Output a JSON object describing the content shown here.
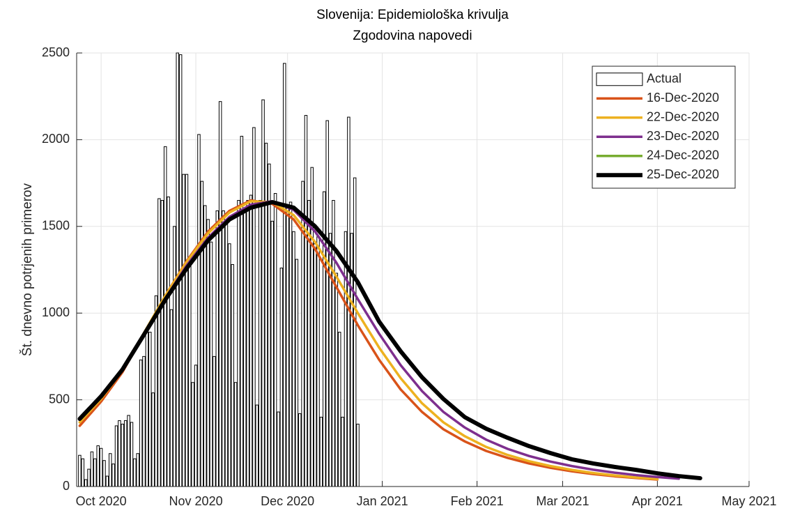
{
  "chart_data": {
    "type": "combo",
    "title": "Slovenija: Epidemiološka krivulja",
    "subtitle": "Zgodovina napovedi",
    "ylabel": "Št. dnevno potrjenih primerov",
    "xlim": [
      "2020-09-23",
      "2021-05-01"
    ],
    "xticks": [
      {
        "value": "2020-10-01",
        "label": "Oct 2020"
      },
      {
        "value": "2020-11-01",
        "label": "Nov 2020"
      },
      {
        "value": "2020-12-01",
        "label": "Dec 2020"
      },
      {
        "value": "2021-01-01",
        "label": "Jan 2021"
      },
      {
        "value": "2021-02-01",
        "label": "Feb 2021"
      },
      {
        "value": "2021-03-01",
        "label": "Mar 2021"
      },
      {
        "value": "2021-04-01",
        "label": "Apr 2021"
      },
      {
        "value": "2021-05-01",
        "label": "May 2021"
      }
    ],
    "ylim": [
      0,
      2500
    ],
    "yticks": [
      0,
      500,
      1000,
      1500,
      2000,
      2500
    ],
    "grid": true,
    "legend": "upper right",
    "bars": {
      "name": "Actual",
      "color": "#ffffff",
      "edgecolor": "#000000",
      "x": [
        "2020-09-24",
        "2020-09-25",
        "2020-09-26",
        "2020-09-27",
        "2020-09-28",
        "2020-09-29",
        "2020-09-30",
        "2020-10-01",
        "2020-10-02",
        "2020-10-03",
        "2020-10-04",
        "2020-10-05",
        "2020-10-06",
        "2020-10-07",
        "2020-10-08",
        "2020-10-09",
        "2020-10-10",
        "2020-10-11",
        "2020-10-12",
        "2020-10-13",
        "2020-10-14",
        "2020-10-15",
        "2020-10-16",
        "2020-10-17",
        "2020-10-18",
        "2020-10-19",
        "2020-10-20",
        "2020-10-21",
        "2020-10-22",
        "2020-10-23",
        "2020-10-24",
        "2020-10-25",
        "2020-10-26",
        "2020-10-27",
        "2020-10-28",
        "2020-10-29",
        "2020-10-30",
        "2020-10-31",
        "2020-11-01",
        "2020-11-02",
        "2020-11-03",
        "2020-11-04",
        "2020-11-05",
        "2020-11-06",
        "2020-11-07",
        "2020-11-08",
        "2020-11-09",
        "2020-11-10",
        "2020-11-11",
        "2020-11-12",
        "2020-11-13",
        "2020-11-14",
        "2020-11-15",
        "2020-11-16",
        "2020-11-17",
        "2020-11-18",
        "2020-11-19",
        "2020-11-20",
        "2020-11-21",
        "2020-11-22",
        "2020-11-23",
        "2020-11-24",
        "2020-11-25",
        "2020-11-26",
        "2020-11-27",
        "2020-11-28",
        "2020-11-29",
        "2020-11-30",
        "2020-12-01",
        "2020-12-02",
        "2020-12-03",
        "2020-12-04",
        "2020-12-05",
        "2020-12-06",
        "2020-12-07",
        "2020-12-08",
        "2020-12-09",
        "2020-12-10",
        "2020-12-11",
        "2020-12-12",
        "2020-12-13",
        "2020-12-14",
        "2020-12-15",
        "2020-12-16",
        "2020-12-17",
        "2020-12-18",
        "2020-12-19",
        "2020-12-20",
        "2020-12-21",
        "2020-12-22",
        "2020-12-23",
        "2020-12-24"
      ],
      "values": [
        180,
        160,
        40,
        100,
        200,
        160,
        235,
        220,
        150,
        60,
        190,
        130,
        350,
        380,
        360,
        380,
        410,
        370,
        160,
        190,
        730,
        750,
        900,
        890,
        540,
        1100,
        1660,
        1650,
        1960,
        1670,
        1020,
        1500,
        2500,
        2490,
        1800,
        1800,
        1290,
        600,
        700,
        2030,
        1760,
        1620,
        1540,
        1410,
        750,
        1590,
        2220,
        1590,
        1520,
        1400,
        1280,
        600,
        1650,
        2020,
        1580,
        1650,
        1680,
        2070,
        470,
        1650,
        2230,
        1980,
        1860,
        1530,
        1690,
        430,
        1260,
        2440,
        1620,
        1640,
        1470,
        1310,
        420,
        1760,
        2140,
        1650,
        1840,
        1400,
        1440,
        400,
        1700,
        2110,
        1460,
        1650,
        1230,
        890,
        400,
        1470,
        2130,
        1460,
        1780,
        360
      ]
    },
    "forecast_x": [
      "2020-09-24",
      "2020-10-01",
      "2020-10-08",
      "2020-10-15",
      "2020-10-22",
      "2020-10-29",
      "2020-11-05",
      "2020-11-12",
      "2020-11-19",
      "2020-11-26",
      "2020-12-03",
      "2020-12-10",
      "2020-12-17",
      "2020-12-24",
      "2020-12-31",
      "2021-01-07",
      "2021-01-14",
      "2021-01-21",
      "2021-01-28",
      "2021-02-04",
      "2021-02-11",
      "2021-02-18",
      "2021-02-25",
      "2021-03-04",
      "2021-03-11",
      "2021-03-18",
      "2021-03-25",
      "2021-04-01",
      "2021-04-08",
      "2021-04-15"
    ],
    "series": [
      {
        "name": "16-Dec-2020",
        "color": "#d95319",
        "values": [
          350,
          490,
          660,
          880,
          1100,
          1300,
          1470,
          1590,
          1650,
          1630,
          1540,
          1370,
          1150,
          930,
          730,
          560,
          430,
          330,
          260,
          205,
          165,
          133,
          108,
          88,
          72,
          59,
          49,
          40,
          null,
          null
        ]
      },
      {
        "name": "22-Dec-2020",
        "color": "#edb120",
        "values": [
          370,
          505,
          670,
          885,
          1100,
          1295,
          1460,
          1580,
          1645,
          1640,
          1565,
          1410,
          1210,
          1000,
          800,
          625,
          480,
          370,
          290,
          228,
          182,
          146,
          118,
          96,
          78,
          64,
          52,
          43,
          null,
          null
        ]
      },
      {
        "name": "23-Dec-2020",
        "color": "#7e2f8e",
        "values": [
          385,
          515,
          675,
          880,
          1085,
          1275,
          1435,
          1555,
          1625,
          1645,
          1595,
          1470,
          1290,
          1080,
          880,
          700,
          550,
          430,
          340,
          270,
          217,
          176,
          144,
          118,
          97,
          80,
          66,
          55,
          45,
          null
        ]
      },
      {
        "name": "24-Dec-2020",
        "color": "#77ac30",
        "values": [
          395,
          522,
          678,
          877,
          1078,
          1260,
          1420,
          1540,
          1608,
          1640,
          1610,
          1505,
          1362,
          1182,
          955,
          785,
          635,
          508,
          402,
          334,
          282,
          234,
          194,
          158,
          134,
          114,
          97,
          77,
          61,
          49
        ]
      },
      {
        "name": "25-Dec-2020",
        "color": "#000000",
        "values": [
          390,
          520,
          675,
          875,
          1077,
          1258,
          1419,
          1540,
          1608,
          1640,
          1608,
          1500,
          1358,
          1178,
          950,
          780,
          630,
          505,
          400,
          333,
          281,
          233,
          193,
          157,
          133,
          113,
          96,
          76,
          60,
          48
        ]
      }
    ]
  }
}
